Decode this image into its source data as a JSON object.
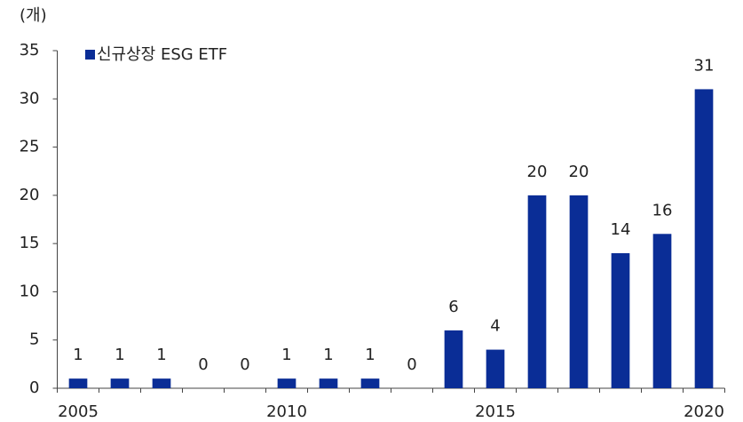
{
  "chart_data": {
    "type": "bar",
    "y_axis_label": "(개)",
    "categories": [
      "2005",
      null,
      null,
      null,
      null,
      "2010",
      null,
      null,
      null,
      null,
      "2015",
      null,
      null,
      null,
      null,
      "2020"
    ],
    "series": [
      {
        "name": "신규상장 ESG ETF",
        "color": "#0a2d96",
        "values": [
          1,
          1,
          1,
          0,
          0,
          1,
          1,
          1,
          0,
          6,
          4,
          20,
          20,
          14,
          16,
          31
        ]
      }
    ],
    "ylim": [
      0,
      35
    ],
    "yticks": [
      0,
      5,
      10,
      15,
      20,
      25,
      30,
      35
    ],
    "grid": false,
    "legend": "top-left",
    "data_labels": true
  }
}
